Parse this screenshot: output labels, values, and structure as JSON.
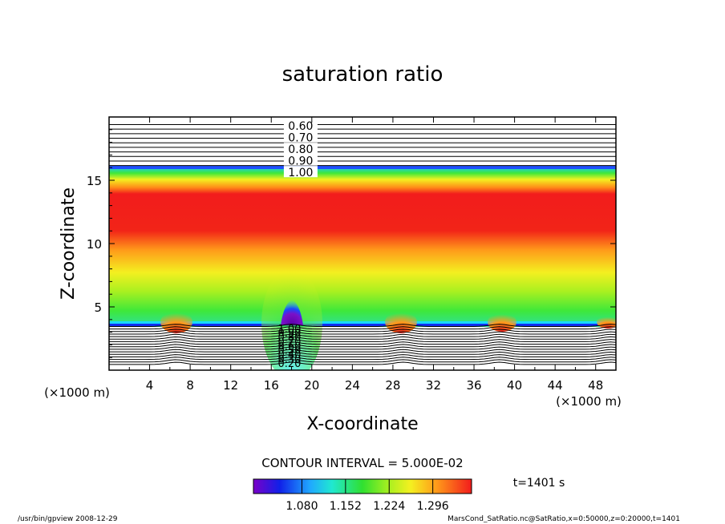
{
  "chart_data": {
    "type": "contour",
    "title": "saturation ratio",
    "xlabel": "X-coordinate",
    "ylabel": "Z-coordinate",
    "x_unit": "(×1000 m)",
    "y_unit": "(×1000 m)",
    "xlim": [
      0,
      50
    ],
    "ylim": [
      0,
      20
    ],
    "x_ticks": [
      4,
      8,
      12,
      16,
      20,
      24,
      28,
      32,
      36,
      40,
      44,
      48
    ],
    "y_ticks": [
      5,
      10,
      15
    ],
    "upper_contour_labels": [
      "0.60",
      "0.70",
      "0.80",
      "0.90",
      "1.00"
    ],
    "lower_contour_labels": [
      "1.00",
      "0.90",
      "0.80",
      "0.70",
      "0.60",
      "0.50",
      "0.40",
      "0.30",
      "0.20"
    ],
    "contour_interval_text": "CONTOUR INTERVAL = 5.000E-02",
    "colorbar_ticks": [
      "1.080",
      "1.152",
      "1.224",
      "1.296"
    ],
    "colorbar_range": [
      1.0,
      1.36
    ],
    "time_label": "t=1401 s",
    "colors": {
      "low": "#6a00b0",
      "blue": "#1c3cff",
      "cyan": "#20d8ff",
      "green": "#3ee83a",
      "yellow": "#f4f020",
      "orange": "#ff9a1a",
      "red": "#f21c1c"
    }
  },
  "footer": {
    "left": "/usr/bin/gpview   2008-12-29",
    "right": "MarsCond_SatRatio.nc@SatRatio,x=0:50000,z=0:20000,t=1401"
  }
}
